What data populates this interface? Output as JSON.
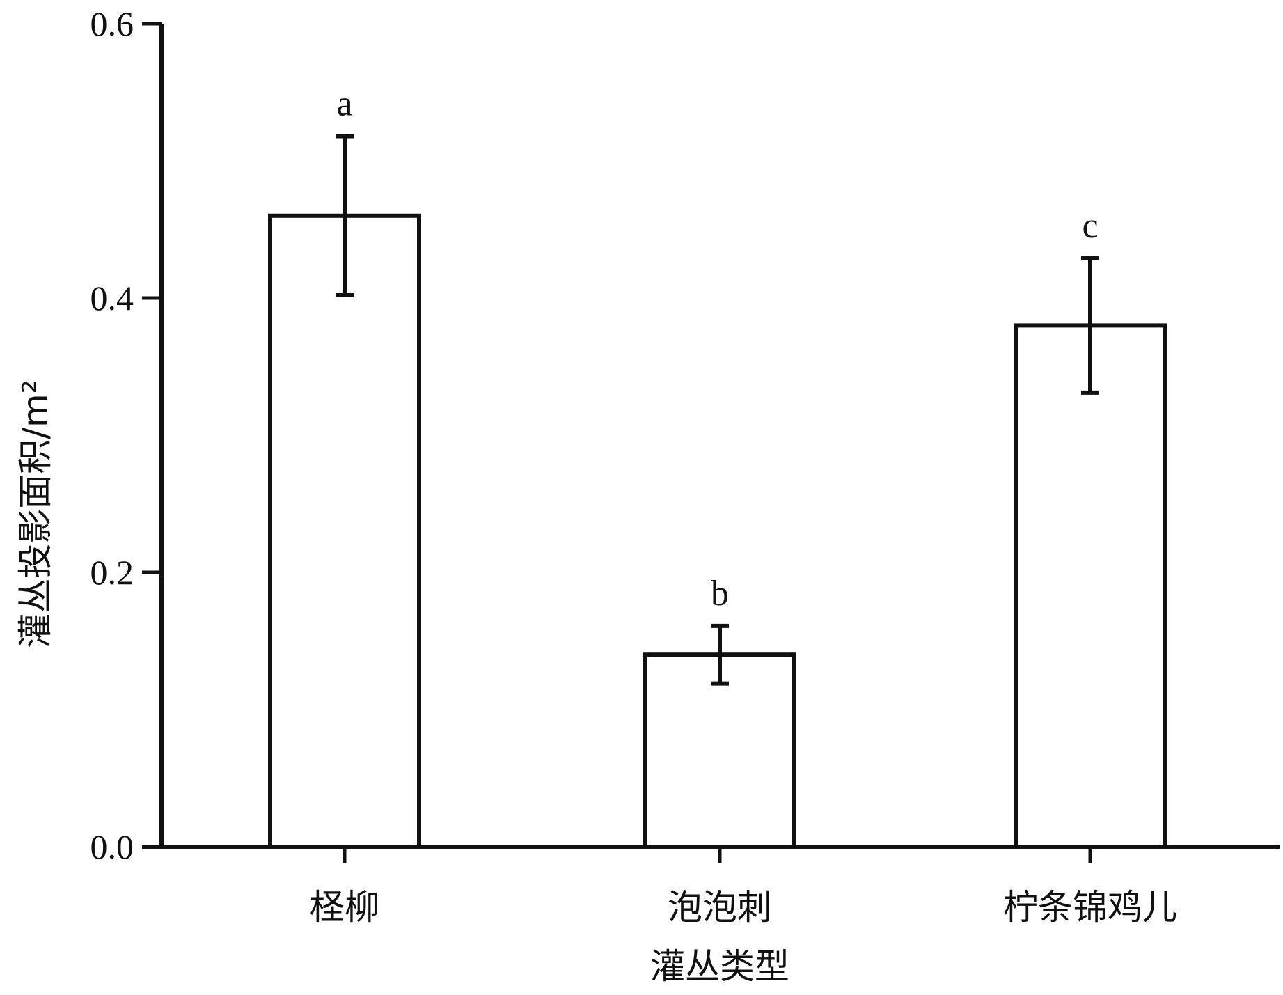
{
  "chart_data": {
    "type": "bar",
    "categories": [
      "柽柳",
      "泡泡刺",
      "柠条锦鸡儿"
    ],
    "values": [
      0.46,
      0.14,
      0.38
    ],
    "errors": [
      0.058,
      0.021,
      0.049
    ],
    "significance": [
      "a",
      "b",
      "c"
    ],
    "xlabel": "灌丛类型",
    "ylabel": "灌丛投影面积/m²",
    "ylim": [
      0,
      0.6
    ],
    "yticks": [
      "0.0",
      "0.2",
      "0.4",
      "0.6"
    ],
    "grid": false,
    "bar_fill": "#ffffff",
    "bar_stroke": "#111111"
  }
}
